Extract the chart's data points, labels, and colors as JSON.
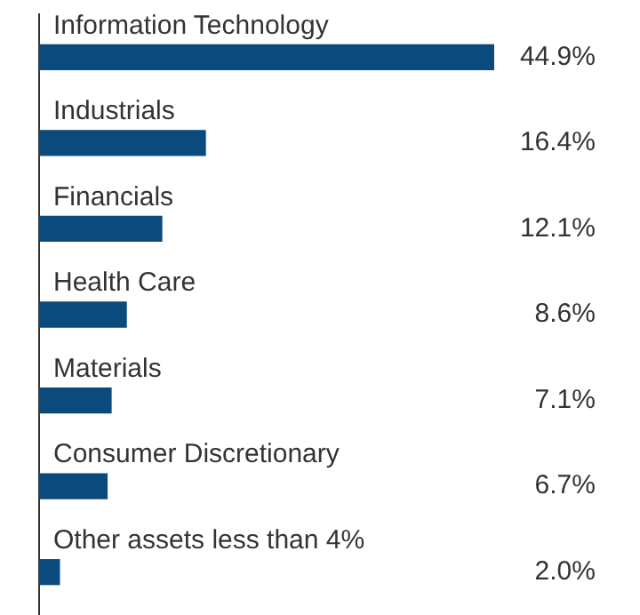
{
  "chart_data": {
    "type": "bar",
    "orientation": "horizontal",
    "categories": [
      "Information Technology",
      "Industrials",
      "Financials",
      "Health Care",
      "Materials",
      "Consumer Discretionary",
      "Other assets less than 4%"
    ],
    "values": [
      44.9,
      16.4,
      12.1,
      8.6,
      7.1,
      6.7,
      2.0
    ],
    "value_labels": [
      "44.9%",
      "16.4%",
      "12.1%",
      "8.6%",
      "7.1%",
      "6.7%",
      "2.0%"
    ],
    "color": "#0b4a7d",
    "grid": false,
    "legend": false
  }
}
